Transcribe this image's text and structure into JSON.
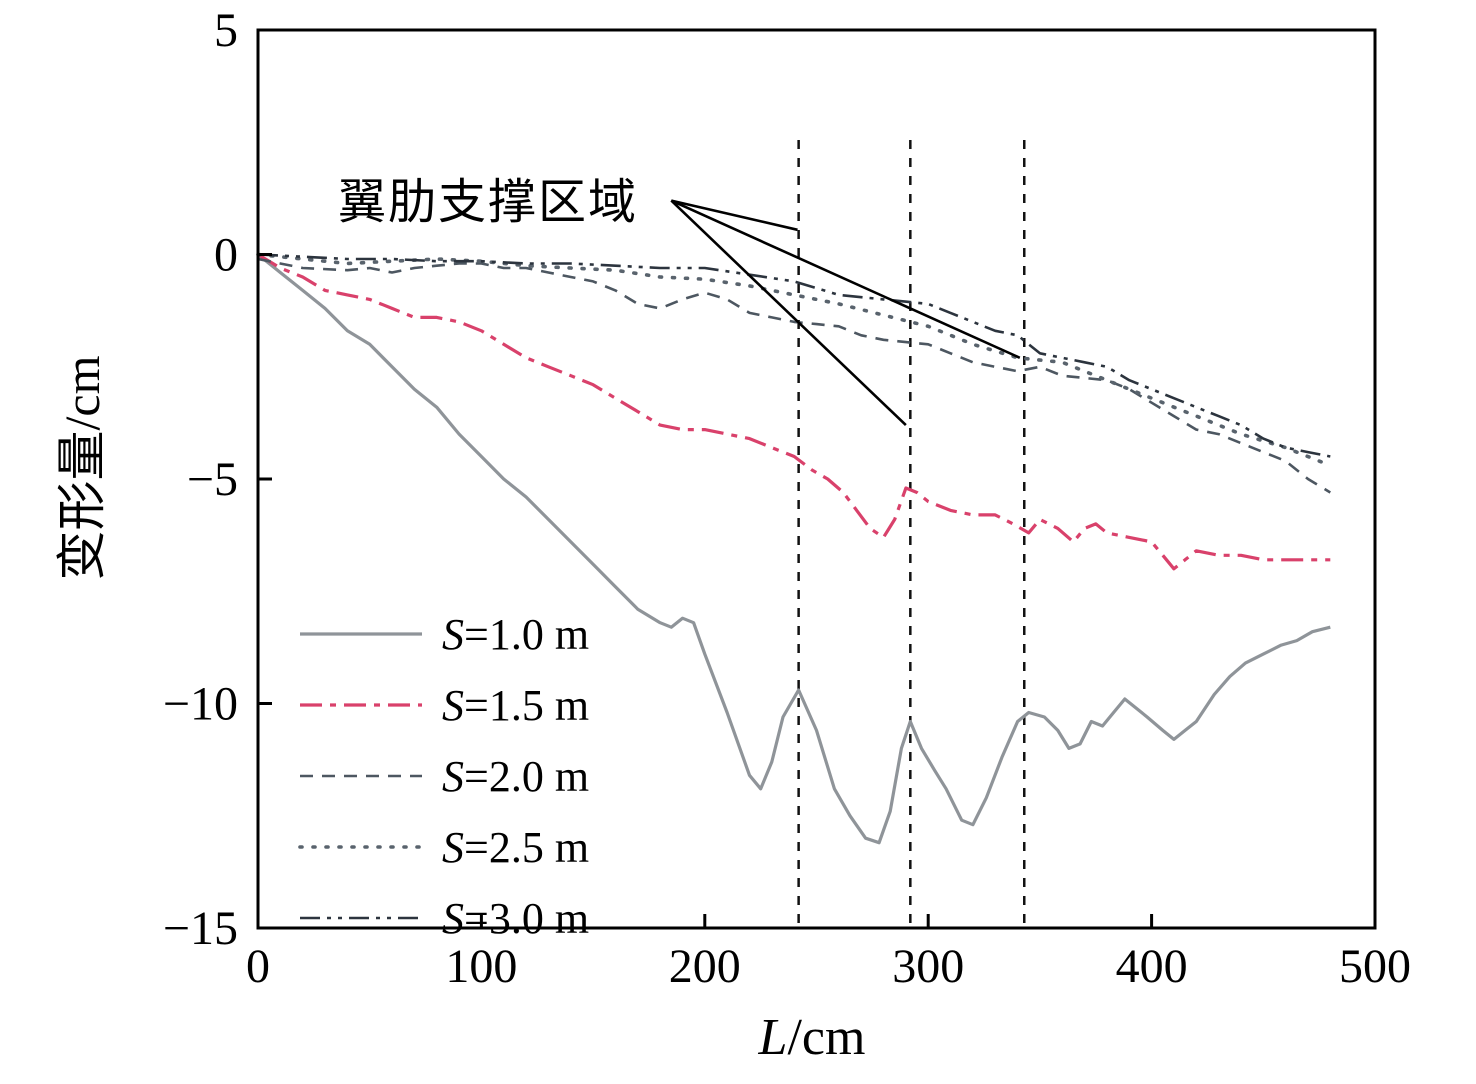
{
  "chart_data": {
    "type": "line",
    "title": "",
    "xlabel_italic": "L",
    "xlabel_rest": "/cm",
    "ylabel": "变形量/cm",
    "xlim": [
      0,
      500
    ],
    "ylim": [
      -15,
      5
    ],
    "grid": false,
    "legend_position": "inside-left-bottom",
    "xticks": {
      "values": [
        0,
        100,
        200,
        300,
        400,
        500
      ],
      "labels": [
        "0",
        "100",
        "200",
        "300",
        "400",
        "500"
      ]
    },
    "yticks": {
      "values": [
        5,
        0,
        -5,
        -10,
        -15
      ],
      "labels": [
        "5",
        "0",
        "−5",
        "−10",
        "−15"
      ]
    },
    "annotation": {
      "text": "翼肋支撑区域",
      "anchor": {
        "x": 185,
        "y": 1.2
      },
      "targets": [
        {
          "x": 241.5,
          "y": 0.55
        },
        {
          "x": 290.0,
          "y": -3.8
        },
        {
          "x": 341.0,
          "y": -2.3
        }
      ]
    },
    "support_lines": {
      "x": [
        242,
        292,
        343
      ],
      "y_top": 2.55,
      "y_bottom": -15
    },
    "series": [
      {
        "label": "S=1.0 m",
        "color": "#8f9499",
        "dash": "",
        "width": 3.2,
        "linecap": "butt",
        "points": [
          [
            0,
            0
          ],
          [
            10,
            -0.4
          ],
          [
            20,
            -0.8
          ],
          [
            30,
            -1.2
          ],
          [
            40,
            -1.7
          ],
          [
            50,
            -2.0
          ],
          [
            60,
            -2.5
          ],
          [
            70,
            -3.0
          ],
          [
            80,
            -3.4
          ],
          [
            90,
            -4.0
          ],
          [
            100,
            -4.5
          ],
          [
            110,
            -5.0
          ],
          [
            120,
            -5.4
          ],
          [
            130,
            -5.9
          ],
          [
            140,
            -6.4
          ],
          [
            150,
            -6.9
          ],
          [
            160,
            -7.4
          ],
          [
            170,
            -7.9
          ],
          [
            180,
            -8.2
          ],
          [
            185,
            -8.3
          ],
          [
            190,
            -8.1
          ],
          [
            195,
            -8.2
          ],
          [
            200,
            -8.9
          ],
          [
            210,
            -10.2
          ],
          [
            220,
            -11.6
          ],
          [
            225,
            -11.9
          ],
          [
            230,
            -11.3
          ],
          [
            235,
            -10.3
          ],
          [
            242,
            -9.7
          ],
          [
            250,
            -10.6
          ],
          [
            258,
            -11.9
          ],
          [
            265,
            -12.5
          ],
          [
            272,
            -13.0
          ],
          [
            278,
            -13.1
          ],
          [
            283,
            -12.4
          ],
          [
            288,
            -11.0
          ],
          [
            292,
            -10.4
          ],
          [
            297,
            -11.0
          ],
          [
            303,
            -11.5
          ],
          [
            308,
            -11.9
          ],
          [
            315,
            -12.6
          ],
          [
            320,
            -12.7
          ],
          [
            326,
            -12.1
          ],
          [
            333,
            -11.2
          ],
          [
            340,
            -10.4
          ],
          [
            345,
            -10.2
          ],
          [
            352,
            -10.3
          ],
          [
            358,
            -10.6
          ],
          [
            363,
            -11.0
          ],
          [
            368,
            -10.9
          ],
          [
            373,
            -10.4
          ],
          [
            378,
            -10.5
          ],
          [
            383,
            -10.2
          ],
          [
            388,
            -9.9
          ],
          [
            393,
            -10.1
          ],
          [
            398,
            -10.3
          ],
          [
            405,
            -10.6
          ],
          [
            410,
            -10.8
          ],
          [
            415,
            -10.6
          ],
          [
            420,
            -10.4
          ],
          [
            428,
            -9.8
          ],
          [
            435,
            -9.4
          ],
          [
            442,
            -9.1
          ],
          [
            450,
            -8.9
          ],
          [
            458,
            -8.7
          ],
          [
            465,
            -8.6
          ],
          [
            472,
            -8.4
          ],
          [
            480,
            -8.3
          ]
        ]
      },
      {
        "label": "S=1.5 m",
        "color": "#d9416b",
        "dash": "22 8 6 8",
        "width": 3.2,
        "linecap": "butt",
        "points": [
          [
            0,
            0
          ],
          [
            10,
            -0.3
          ],
          [
            20,
            -0.5
          ],
          [
            30,
            -0.8
          ],
          [
            40,
            -0.9
          ],
          [
            50,
            -1.0
          ],
          [
            60,
            -1.2
          ],
          [
            70,
            -1.4
          ],
          [
            80,
            -1.4
          ],
          [
            90,
            -1.5
          ],
          [
            100,
            -1.7
          ],
          [
            110,
            -2.0
          ],
          [
            120,
            -2.3
          ],
          [
            130,
            -2.5
          ],
          [
            140,
            -2.7
          ],
          [
            150,
            -2.9
          ],
          [
            160,
            -3.2
          ],
          [
            170,
            -3.5
          ],
          [
            180,
            -3.8
          ],
          [
            190,
            -3.9
          ],
          [
            200,
            -3.9
          ],
          [
            210,
            -4.0
          ],
          [
            220,
            -4.1
          ],
          [
            230,
            -4.3
          ],
          [
            240,
            -4.5
          ],
          [
            248,
            -4.8
          ],
          [
            255,
            -5.0
          ],
          [
            262,
            -5.3
          ],
          [
            268,
            -5.7
          ],
          [
            274,
            -6.1
          ],
          [
            280,
            -6.3
          ],
          [
            285,
            -5.9
          ],
          [
            290,
            -5.2
          ],
          [
            295,
            -5.3
          ],
          [
            300,
            -5.5
          ],
          [
            310,
            -5.7
          ],
          [
            320,
            -5.8
          ],
          [
            330,
            -5.8
          ],
          [
            338,
            -6.0
          ],
          [
            345,
            -6.2
          ],
          [
            350,
            -5.9
          ],
          [
            358,
            -6.1
          ],
          [
            365,
            -6.4
          ],
          [
            370,
            -6.1
          ],
          [
            375,
            -6.0
          ],
          [
            380,
            -6.2
          ],
          [
            390,
            -6.3
          ],
          [
            400,
            -6.4
          ],
          [
            405,
            -6.7
          ],
          [
            410,
            -7.0
          ],
          [
            415,
            -6.8
          ],
          [
            420,
            -6.6
          ],
          [
            430,
            -6.7
          ],
          [
            440,
            -6.7
          ],
          [
            450,
            -6.8
          ],
          [
            460,
            -6.8
          ],
          [
            470,
            -6.8
          ],
          [
            480,
            -6.8
          ]
        ]
      },
      {
        "label": "S=2.0 m",
        "color": "#4d5761",
        "dash": "13 9",
        "width": 2.6,
        "linecap": "butt",
        "points": [
          [
            0,
            -0.1
          ],
          [
            20,
            -0.3
          ],
          [
            40,
            -0.35
          ],
          [
            50,
            -0.3
          ],
          [
            60,
            -0.4
          ],
          [
            70,
            -0.3
          ],
          [
            80,
            -0.25
          ],
          [
            90,
            -0.2
          ],
          [
            100,
            -0.2
          ],
          [
            110,
            -0.3
          ],
          [
            120,
            -0.3
          ],
          [
            130,
            -0.4
          ],
          [
            140,
            -0.5
          ],
          [
            150,
            -0.6
          ],
          [
            160,
            -0.8
          ],
          [
            170,
            -1.1
          ],
          [
            180,
            -1.2
          ],
          [
            190,
            -1.0
          ],
          [
            200,
            -0.85
          ],
          [
            210,
            -1.0
          ],
          [
            220,
            -1.3
          ],
          [
            230,
            -1.4
          ],
          [
            240,
            -1.5
          ],
          [
            250,
            -1.55
          ],
          [
            260,
            -1.6
          ],
          [
            270,
            -1.8
          ],
          [
            280,
            -1.9
          ],
          [
            290,
            -1.95
          ],
          [
            300,
            -2.0
          ],
          [
            310,
            -2.2
          ],
          [
            320,
            -2.4
          ],
          [
            330,
            -2.5
          ],
          [
            340,
            -2.6
          ],
          [
            350,
            -2.5
          ],
          [
            360,
            -2.7
          ],
          [
            370,
            -2.75
          ],
          [
            380,
            -2.8
          ],
          [
            390,
            -3.0
          ],
          [
            400,
            -3.3
          ],
          [
            410,
            -3.6
          ],
          [
            420,
            -3.9
          ],
          [
            430,
            -4.0
          ],
          [
            440,
            -4.2
          ],
          [
            450,
            -4.4
          ],
          [
            460,
            -4.6
          ],
          [
            470,
            -5.0
          ],
          [
            480,
            -5.3
          ]
        ]
      },
      {
        "label": "S=2.5 m",
        "color": "#59636d",
        "dash": "2 11",
        "width": 3.6,
        "linecap": "round",
        "points": [
          [
            0,
            0
          ],
          [
            20,
            -0.1
          ],
          [
            40,
            -0.2
          ],
          [
            60,
            -0.15
          ],
          [
            80,
            -0.1
          ],
          [
            100,
            -0.15
          ],
          [
            120,
            -0.25
          ],
          [
            140,
            -0.3
          ],
          [
            160,
            -0.35
          ],
          [
            180,
            -0.5
          ],
          [
            200,
            -0.55
          ],
          [
            220,
            -0.7
          ],
          [
            240,
            -0.9
          ],
          [
            260,
            -1.1
          ],
          [
            280,
            -1.35
          ],
          [
            300,
            -1.6
          ],
          [
            320,
            -2.0
          ],
          [
            340,
            -2.3
          ],
          [
            360,
            -2.4
          ],
          [
            380,
            -2.8
          ],
          [
            400,
            -3.2
          ],
          [
            420,
            -3.6
          ],
          [
            440,
            -4.0
          ],
          [
            460,
            -4.3
          ],
          [
            480,
            -4.7
          ]
        ]
      },
      {
        "label": "S=3.0 m",
        "color": "#2c343e",
        "dash": "20 7 4 7 4 7",
        "width": 2.6,
        "linecap": "butt",
        "points": [
          [
            0,
            0
          ],
          [
            20,
            -0.05
          ],
          [
            40,
            -0.1
          ],
          [
            60,
            -0.1
          ],
          [
            80,
            -0.15
          ],
          [
            100,
            -0.15
          ],
          [
            120,
            -0.2
          ],
          [
            140,
            -0.2
          ],
          [
            160,
            -0.25
          ],
          [
            180,
            -0.3
          ],
          [
            200,
            -0.3
          ],
          [
            220,
            -0.45
          ],
          [
            240,
            -0.6
          ],
          [
            260,
            -0.9
          ],
          [
            280,
            -1.0
          ],
          [
            300,
            -1.1
          ],
          [
            310,
            -1.3
          ],
          [
            320,
            -1.5
          ],
          [
            330,
            -1.7
          ],
          [
            340,
            -1.8
          ],
          [
            350,
            -2.2
          ],
          [
            360,
            -2.3
          ],
          [
            370,
            -2.4
          ],
          [
            380,
            -2.5
          ],
          [
            390,
            -2.8
          ],
          [
            400,
            -3.0
          ],
          [
            410,
            -3.2
          ],
          [
            420,
            -3.4
          ],
          [
            430,
            -3.6
          ],
          [
            440,
            -3.8
          ],
          [
            450,
            -4.1
          ],
          [
            460,
            -4.3
          ],
          [
            470,
            -4.4
          ],
          [
            480,
            -4.5
          ]
        ]
      }
    ]
  }
}
